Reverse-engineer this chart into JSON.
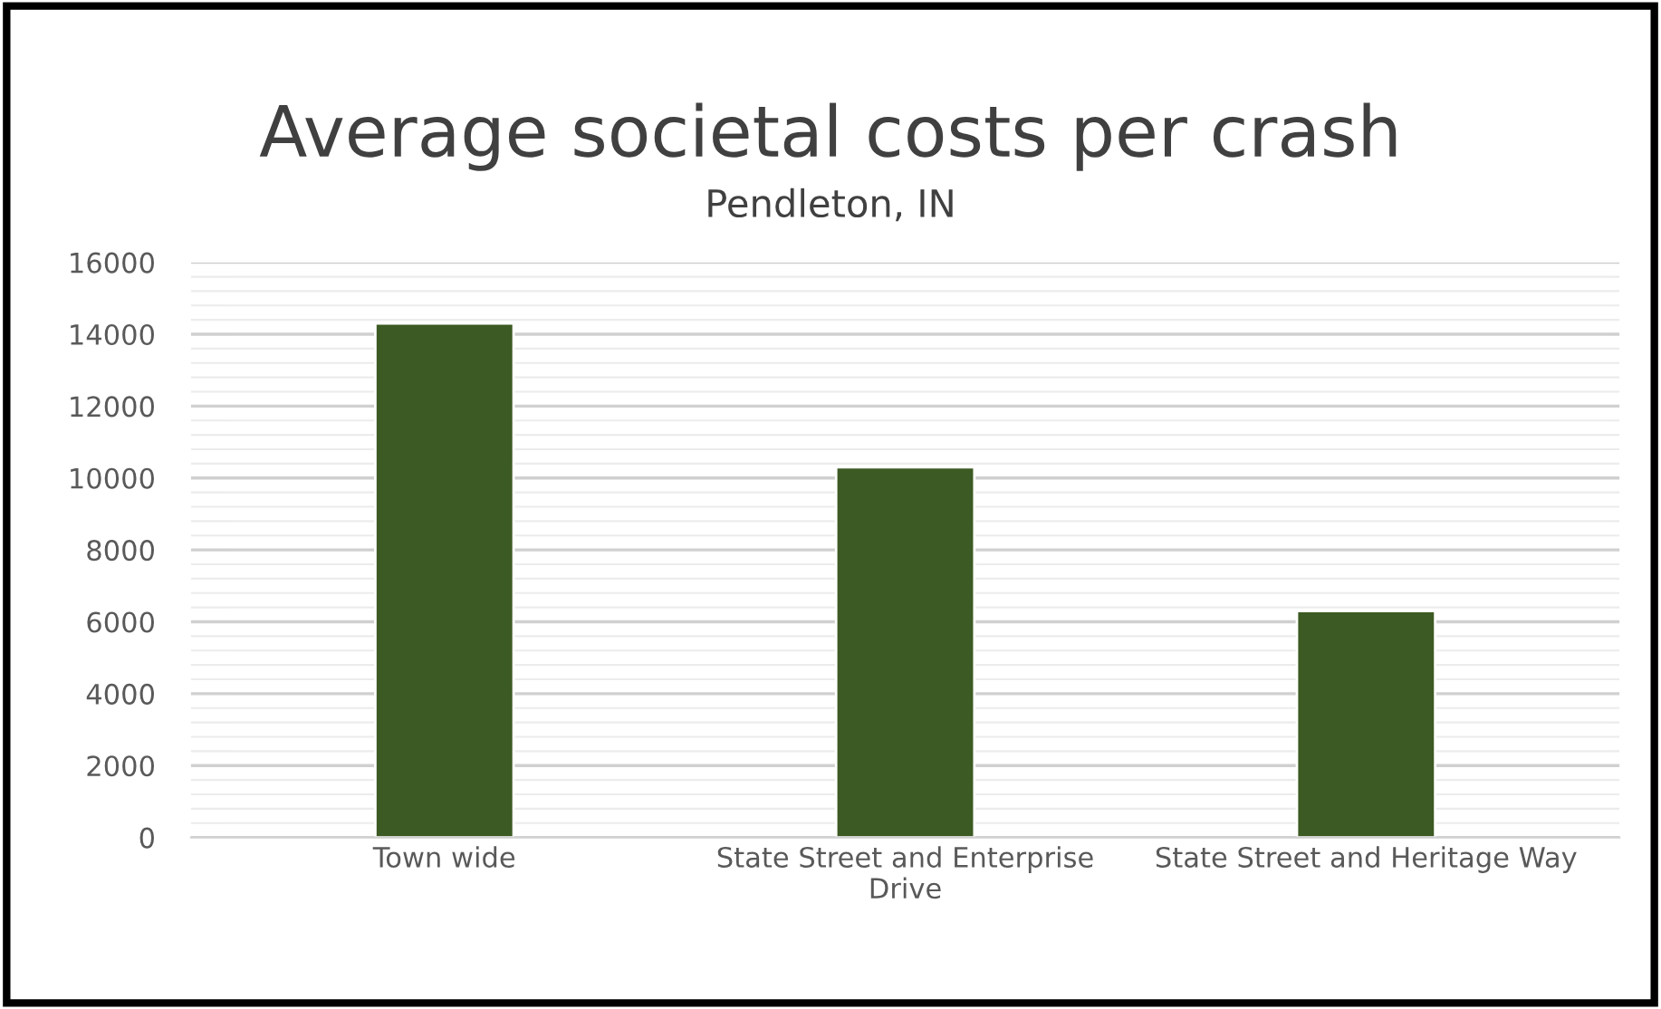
{
  "chart_data": {
    "type": "bar",
    "title": "Average societal costs per crash",
    "subtitle": "Pendleton, IN",
    "categories": [
      "Town wide",
      "State Street and Enterprise Drive",
      "State Street and Heritage Way"
    ],
    "values": [
      14300,
      10300,
      6300
    ],
    "color": "#3c5a23",
    "ylim": [
      0,
      16000
    ],
    "yticks": [
      0,
      {
        "value": 400,
        "label": null
      },
      {
        "value": 800,
        "label": null
      },
      {
        "value": 1200,
        "label": null
      },
      {
        "value": 1600,
        "label": null
      },
      2000,
      {
        "value": 2400,
        "label": null
      },
      {
        "value": 2800,
        "label": null
      },
      {
        "value": 3200,
        "label": null
      },
      {
        "value": 3600,
        "label": null
      },
      4000,
      {
        "value": 4400,
        "label": null
      },
      {
        "value": 4800,
        "label": null
      },
      {
        "value": 5200,
        "label": null
      },
      {
        "value": 5600,
        "label": null
      },
      6000,
      {
        "value": 6400,
        "label": null
      },
      {
        "value": 6800,
        "label": null
      },
      {
        "value": 7200,
        "label": null
      },
      {
        "value": 7600,
        "label": null
      },
      8000,
      {
        "value": 8400,
        "label": null
      },
      {
        "value": 8800,
        "label": null
      },
      {
        "value": 9200,
        "label": null
      },
      {
        "value": 9600,
        "label": null
      },
      10000,
      {
        "value": 10400,
        "label": null
      },
      {
        "value": 10800,
        "label": null
      },
      {
        "value": 11200,
        "label": null
      },
      {
        "value": 11600,
        "label": null
      },
      12000,
      {
        "value": 12400,
        "label": null
      },
      {
        "value": 12800,
        "label": null
      },
      {
        "value": 13200,
        "label": null
      },
      {
        "value": 13600,
        "label": null
      },
      14000,
      {
        "value": 14400,
        "label": null
      },
      {
        "value": 14800,
        "label": null
      },
      {
        "value": 15200,
        "label": null
      },
      {
        "value": 15600,
        "label": null
      },
      16000
    ],
    "grid": "y",
    "legend": false
  }
}
